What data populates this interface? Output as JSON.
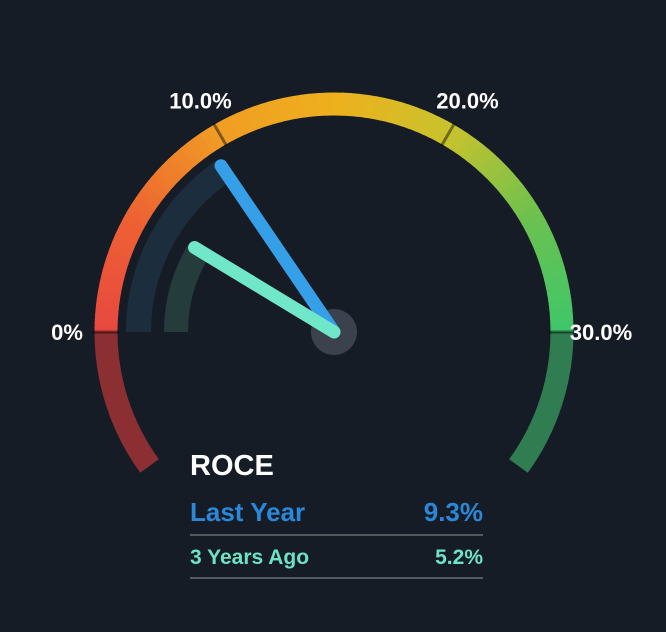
{
  "page": {
    "background": "#161c26"
  },
  "chart_data": {
    "type": "gauge",
    "title": "ROCE",
    "axis": {
      "min": 0,
      "max": 30,
      "unit": "%",
      "sweep_deg": 180,
      "dim_extension_deg": 36,
      "ticks": [
        {
          "value": 0,
          "label": "0%"
        },
        {
          "value": 10,
          "label": "10.0%"
        },
        {
          "value": 20,
          "label": "20.0%"
        },
        {
          "value": 30,
          "label": "30.0%"
        }
      ]
    },
    "arc_colors": {
      "gradient_stops": [
        "#e74840",
        "#ee6232",
        "#f09d24",
        "#eeb01d",
        "#c8c32c",
        "#6cc14f",
        "#3ec66b"
      ],
      "dim_left": "#8c2f33",
      "dim_right": "#2f7d51",
      "tick_line": "rgba(0,0,0,0.45)",
      "tick_label_color": "#ffffff"
    },
    "hub_color": "#3c424d",
    "legend_divider_color": "#555a61",
    "title_color": "#ffffff",
    "series": [
      {
        "name": "Last Year",
        "value": 9.3,
        "label": "9.3%",
        "needle_color": "#359fe8",
        "track_color": "#1c2e3d",
        "legend_color": "#2b87d8",
        "needle_length": 201,
        "track_outer_radius": 208,
        "track_width": 25
      },
      {
        "name": "3 Years Ago",
        "value": 5.2,
        "label": "5.2%",
        "needle_color": "#6fe7c8",
        "track_color": "#253c3c",
        "legend_color": "#6ce3c4",
        "needle_length": 163,
        "track_outer_radius": 170,
        "track_width": 24
      }
    ]
  }
}
